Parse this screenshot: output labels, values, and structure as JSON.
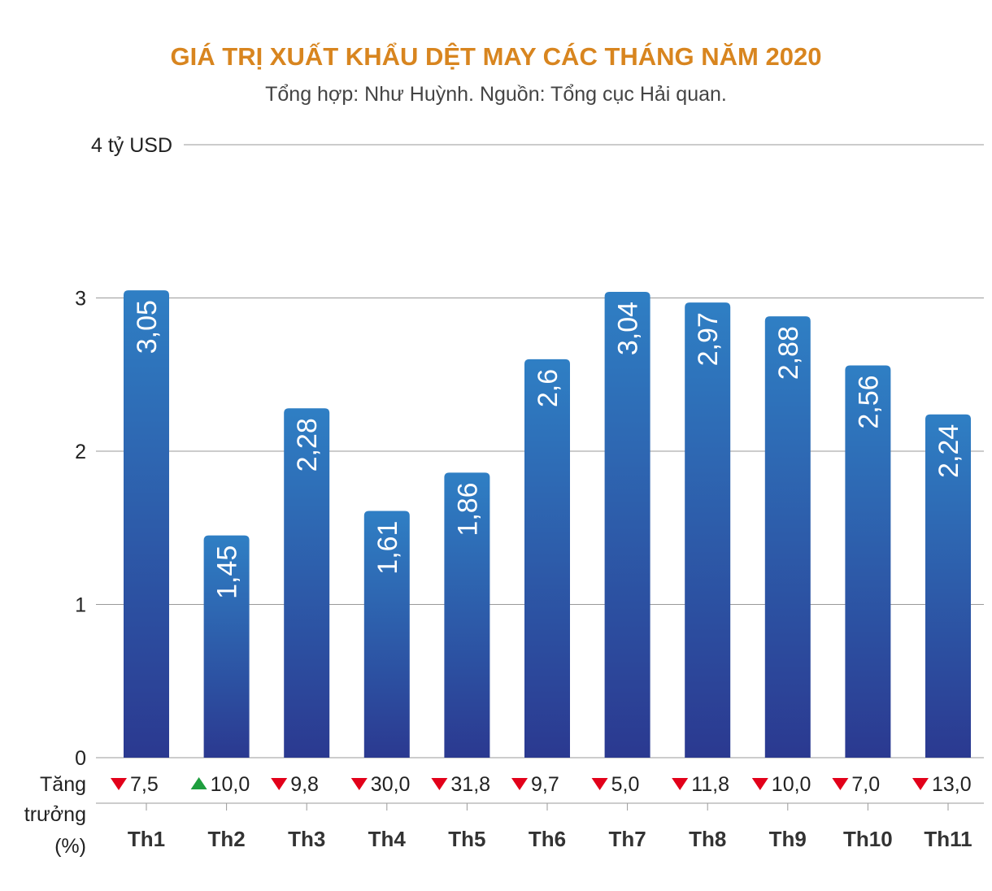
{
  "chart_data": {
    "type": "bar",
    "title": "GIÁ TRỊ XUẤT KHẨU DỆT MAY CÁC THÁNG NĂM 2020",
    "subtitle": "Tổng hợp: Như Huỳnh. Nguồn: Tổng cục Hải quan.",
    "ylabel": "",
    "ytick_labels": [
      "0",
      "1",
      "2",
      "3",
      "4 tỷ USD"
    ],
    "yticks": [
      0,
      1,
      2,
      3,
      4
    ],
    "ylim": [
      0,
      4
    ],
    "categories": [
      "Th1",
      "Th2",
      "Th3",
      "Th4",
      "Th5",
      "Th6",
      "Th7",
      "Th8",
      "Th9",
      "Th10",
      "Th11"
    ],
    "values": [
      3.05,
      1.45,
      2.28,
      1.61,
      1.86,
      2.6,
      3.04,
      2.97,
      2.88,
      2.56,
      2.24
    ],
    "value_labels": [
      "3,05",
      "1,45",
      "2,28",
      "1,61",
      "1,86",
      "2,6",
      "3,04",
      "2,97",
      "2,88",
      "2,56",
      "2,24"
    ],
    "growth_label_lines": [
      "Tăng",
      "trưởng",
      "(%)"
    ],
    "growth": [
      {
        "direction": "down",
        "label": "7,5"
      },
      {
        "direction": "up",
        "label": "10,0"
      },
      {
        "direction": "down",
        "label": "9,8"
      },
      {
        "direction": "down",
        "label": "30,0"
      },
      {
        "direction": "down",
        "label": "31,8"
      },
      {
        "direction": "down",
        "label": "9,7"
      },
      {
        "direction": "down",
        "label": "5,0"
      },
      {
        "direction": "down",
        "label": "11,8"
      },
      {
        "direction": "down",
        "label": "10,0"
      },
      {
        "direction": "down",
        "label": "7,0"
      },
      {
        "direction": "down",
        "label": "13,0"
      }
    ],
    "grid": true,
    "colors": {
      "bar_top": "#2f7fc4",
      "bar_bottom": "#2b3990",
      "title": "#d8851f",
      "up": "#1e9e3e",
      "down": "#e2001a"
    }
  }
}
